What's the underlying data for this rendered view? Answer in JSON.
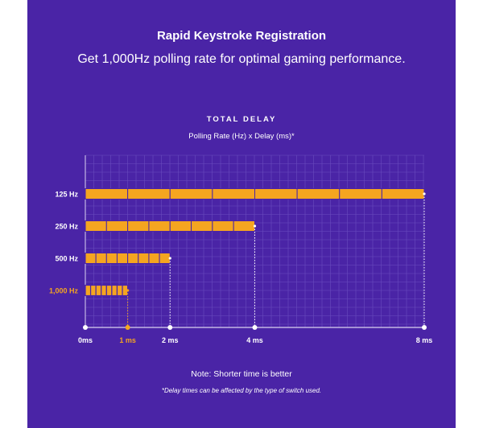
{
  "heading": {
    "title": "Rapid Keystroke Registration",
    "subtitle": "Get 1,000Hz polling rate for optimal gaming performance."
  },
  "chart_data": {
    "type": "bar",
    "orientation": "horizontal",
    "title": "TOTAL DELAY",
    "subtitle": "Polling Rate (Hz) x Delay (ms)*",
    "categories": [
      "125 Hz",
      "250 Hz",
      "500 Hz",
      "1,000 Hz"
    ],
    "values": [
      8,
      4,
      2,
      1
    ],
    "segments_per_bar": 8,
    "x_ticks": [
      {
        "value": 0,
        "label": "0ms",
        "highlight": false
      },
      {
        "value": 1,
        "label": "1 ms",
        "highlight": true
      },
      {
        "value": 2,
        "label": "2 ms",
        "highlight": false
      },
      {
        "value": 4,
        "label": "4 ms",
        "highlight": false
      },
      {
        "value": 8,
        "label": "8 ms",
        "highlight": false
      }
    ],
    "xlim": [
      0,
      8
    ],
    "highlight_category": "1,000 Hz",
    "grid": true
  },
  "notes": {
    "note": "Note: Shorter time is better",
    "footnote": "*Delay times can be affected by the type of switch used."
  },
  "colors": {
    "background": "#4a24a6",
    "bar": "#f5a520",
    "highlight": "#f5a520",
    "text": "#ffffff",
    "grid": "#6a4cbf"
  }
}
